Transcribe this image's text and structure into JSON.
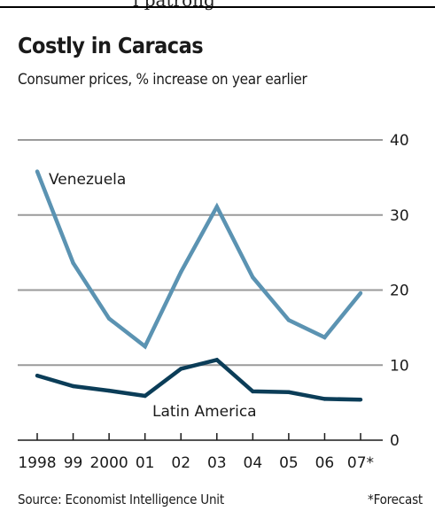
{
  "header": {
    "top_fragment": "i patrong",
    "title": "Costly in Caracas",
    "subtitle": "Consumer prices, % increase on year earlier"
  },
  "footer": {
    "source": "Source: Economist Intelligence Unit",
    "footnote": "*Forecast"
  },
  "colors": {
    "venezuela": "#5b93b2",
    "latin_america": "#0b3d58",
    "gridline": "#9a9a9a",
    "axis": "#1a1a1a"
  },
  "chart_data": {
    "type": "line",
    "title": "Costly in Caracas",
    "subtitle": "Consumer prices, % increase on year earlier",
    "categories": [
      "1998",
      "99",
      "2000",
      "01",
      "02",
      "03",
      "04",
      "05",
      "06",
      "07*"
    ],
    "series": [
      {
        "name": "Venezuela",
        "values": [
          35.8,
          23.6,
          16.2,
          12.5,
          22.4,
          31.1,
          21.7,
          16.0,
          13.7,
          19.6
        ]
      },
      {
        "name": "Latin America",
        "values": [
          8.6,
          7.2,
          6.6,
          5.9,
          9.5,
          10.7,
          6.5,
          6.4,
          5.5,
          5.4
        ]
      }
    ],
    "ylim": [
      0,
      40
    ],
    "yticks": [
      "0",
      "10",
      "20",
      "30",
      "40"
    ],
    "y_axis_side": "right",
    "grid": true,
    "legend": "inline labels"
  }
}
